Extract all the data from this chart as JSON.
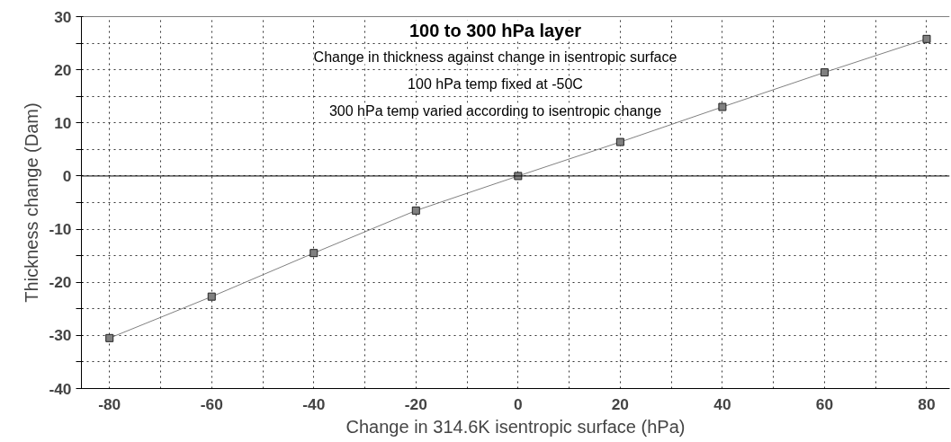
{
  "chart_data": {
    "type": "line",
    "title": "100 to 300 hPa layer",
    "subtitle": "Change in thickness against change in isentropic surface",
    "annotations": [
      "100 hPa temp fixed at -50C",
      "300 hPa temp varied according to isentropic change"
    ],
    "xlabel": "Change in 314.6K isentropic surface (hPa)",
    "ylabel": "Thickness change (Dam)",
    "x": [
      -80,
      -60,
      -40,
      -20,
      0,
      20,
      40,
      60,
      80
    ],
    "series": [
      {
        "color": "#808080",
        "values": [
          -30.5,
          -22.7,
          -14.5,
          -6.5,
          0,
          6.4,
          13,
          19.5,
          25.8
        ]
      }
    ],
    "xlim": [
      -85.5,
      84.5
    ],
    "ylim": [
      -40,
      30
    ],
    "xticks": [
      -80,
      {
        "value": -70,
        "label": null
      },
      -60,
      {
        "value": -50,
        "label": null
      },
      -40,
      {
        "value": -30,
        "label": null
      },
      -20,
      {
        "value": -10,
        "label": null
      },
      0,
      {
        "value": 10,
        "label": null
      },
      20,
      {
        "value": 30,
        "label": null
      },
      40,
      {
        "value": 50,
        "label": null
      },
      60,
      {
        "value": 70,
        "label": null
      },
      80
    ],
    "yticks": [
      -40,
      {
        "value": -35,
        "label": null
      },
      -30,
      {
        "value": -25,
        "label": null
      },
      -20,
      {
        "value": -15,
        "label": null
      },
      -10,
      {
        "value": -5,
        "label": null
      },
      0,
      {
        "value": 5,
        "label": null
      },
      10,
      {
        "value": 15,
        "label": null
      },
      20,
      {
        "value": 25,
        "label": null
      },
      30
    ],
    "ref_lines": [
      {
        "axis": "y",
        "value": 0,
        "label": null,
        "color": "#000000",
        "line_style": "solid"
      }
    ],
    "grid": true,
    "marker": "square",
    "line_style": "solid"
  }
}
